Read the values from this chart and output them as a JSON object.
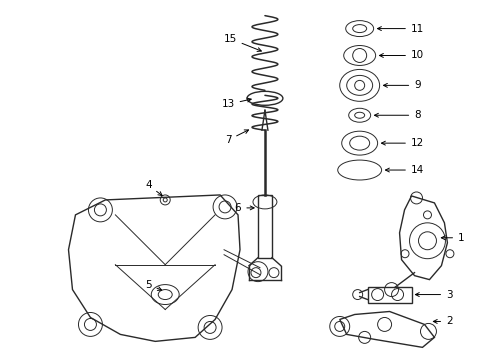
{
  "background_color": "#ffffff",
  "line_color": "#2a2a2a",
  "label_color": "#000000",
  "figsize": [
    4.89,
    3.6
  ],
  "dpi": 100,
  "title": ""
}
